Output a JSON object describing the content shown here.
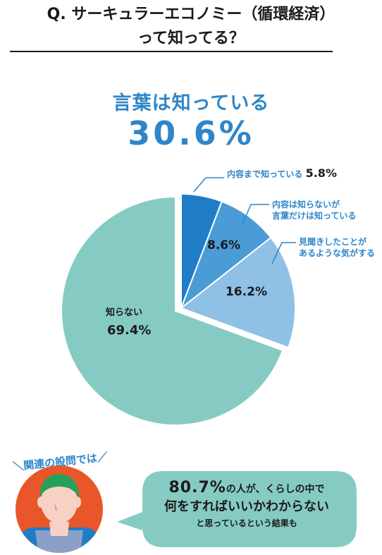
{
  "question": {
    "line1": "Q. サーキュラーエコノミー（循環経済）",
    "line2": "って知ってる？"
  },
  "highlight": {
    "label": "言葉は知っている",
    "value": "30.6%"
  },
  "chart_data": {
    "type": "pie",
    "unit": "%",
    "slices": [
      {
        "label": "内容まで知っている",
        "value": 5.8,
        "display": "5.8%",
        "color": "#1f7cc6"
      },
      {
        "label": "内容は知らないが言葉だけは知っている",
        "value": 8.6,
        "display": "8.6%",
        "color": "#4a9bd6"
      },
      {
        "label": "見聞きしたことがあるような気がする",
        "value": 16.2,
        "display": "16.2%",
        "color": "#8fc0e6"
      },
      {
        "label": "知らない",
        "value": 69.4,
        "display": "69.4%",
        "color": "#86cbc3"
      }
    ],
    "annotations": {
      "s0": [
        "内容まで知っている"
      ],
      "s1": [
        "内容は知らないが",
        "言葉だけは知っている"
      ],
      "s2": [
        "見聞きしたことが",
        "あるような気がする"
      ]
    }
  },
  "related": {
    "tag": "＼関連の設問では／",
    "bubble": {
      "pct": "80.7%",
      "line1_rest": "の人が、くらしの中で",
      "line2": "何をすればいいかわからない",
      "line3": "と思っているという結果も"
    }
  },
  "colors": {
    "accent": "#2e86c9",
    "bubble": "#86cbc3",
    "avatar_bg": "#e8562a"
  }
}
